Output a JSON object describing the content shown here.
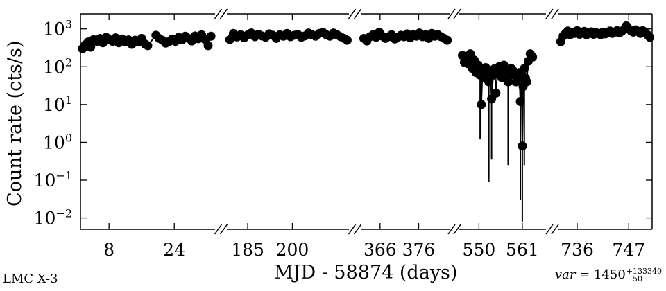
{
  "chart_data": {
    "type": "scatter",
    "ylabel": "Count rate (cts/s)",
    "xlabel": "MJD - 58874 (days)",
    "yscale": "log",
    "ylim": [
      0.005,
      2500
    ],
    "ytick_values": [
      0.01,
      0.1,
      1,
      10,
      100,
      1000
    ],
    "ytick_labels": [
      {
        "base": "10",
        "exp": "−2"
      },
      {
        "base": "10",
        "exp": "−1"
      },
      {
        "base": "10",
        "exp": "0"
      },
      {
        "base": "10",
        "exp": "1"
      },
      {
        "base": "10",
        "exp": "2"
      },
      {
        "base": "10",
        "exp": "3"
      }
    ],
    "broken_axis": true,
    "grid": false,
    "segments": [
      {
        "xlim": [
          1,
          34
        ],
        "xticks": [
          8,
          24
        ],
        "points": [
          [
            1.5,
            300
          ],
          [
            2.2,
            380
          ],
          [
            2.9,
            450
          ],
          [
            3.5,
            330
          ],
          [
            4.2,
            520
          ],
          [
            5.0,
            470
          ],
          [
            5.8,
            560
          ],
          [
            6.5,
            430
          ],
          [
            7.3,
            600
          ],
          [
            8.1,
            520
          ],
          [
            8.9,
            470
          ],
          [
            9.6,
            580
          ],
          [
            10.4,
            430
          ],
          [
            11.2,
            540
          ],
          [
            12.0,
            460
          ],
          [
            12.8,
            510
          ],
          [
            13.6,
            390
          ],
          [
            14.4,
            500
          ],
          [
            15.2,
            450
          ],
          [
            16.0,
            560
          ],
          [
            16.8,
            400
          ],
          [
            17.5,
            360
          ],
          [
            19.5,
            680
          ],
          [
            20.3,
            560
          ],
          [
            21.1,
            500
          ],
          [
            21.9,
            420
          ],
          [
            22.7,
            460
          ],
          [
            23.5,
            540
          ],
          [
            24.3,
            470
          ],
          [
            25.1,
            600
          ],
          [
            25.9,
            510
          ],
          [
            26.7,
            640
          ],
          [
            27.5,
            560
          ],
          [
            28.3,
            480
          ],
          [
            29.1,
            650
          ],
          [
            29.9,
            550
          ],
          [
            30.7,
            700
          ],
          [
            31.5,
            530
          ],
          [
            32.3,
            360
          ],
          [
            33.0,
            640
          ]
        ]
      },
      {
        "xlim": [
          178,
          219
        ],
        "xticks": [
          185,
          200
        ],
        "points": [
          [
            179.0,
            520
          ],
          [
            180.2,
            760
          ],
          [
            181.4,
            610
          ],
          [
            182.6,
            700
          ],
          [
            183.8,
            580
          ],
          [
            185.0,
            690
          ],
          [
            186.2,
            780
          ],
          [
            187.4,
            620
          ],
          [
            188.6,
            720
          ],
          [
            189.8,
            650
          ],
          [
            191.0,
            600
          ],
          [
            192.2,
            740
          ],
          [
            193.4,
            680
          ],
          [
            194.6,
            560
          ],
          [
            195.8,
            700
          ],
          [
            197.0,
            640
          ],
          [
            198.2,
            760
          ],
          [
            199.4,
            620
          ],
          [
            200.6,
            680
          ],
          [
            201.8,
            720
          ],
          [
            203.0,
            600
          ],
          [
            204.2,
            650
          ],
          [
            205.4,
            780
          ],
          [
            206.6,
            700
          ],
          [
            207.8,
            640
          ],
          [
            209.0,
            760
          ],
          [
            210.2,
            820
          ],
          [
            211.4,
            700
          ],
          [
            212.6,
            640
          ],
          [
            213.8,
            780
          ],
          [
            215.0,
            700
          ],
          [
            216.2,
            620
          ],
          [
            217.4,
            560
          ],
          [
            218.4,
            500
          ]
        ]
      },
      {
        "xlim": [
          361,
          384
        ],
        "xticks": [
          366,
          376
        ],
        "points": [
          [
            361.8,
            560
          ],
          [
            362.6,
            480
          ],
          [
            363.4,
            620
          ],
          [
            364.2,
            700
          ],
          [
            365.0,
            600
          ],
          [
            365.8,
            820
          ],
          [
            366.6,
            640
          ],
          [
            367.4,
            560
          ],
          [
            368.2,
            620
          ],
          [
            369.0,
            700
          ],
          [
            369.8,
            540
          ],
          [
            370.6,
            600
          ],
          [
            371.4,
            680
          ],
          [
            372.2,
            620
          ],
          [
            373.0,
            740
          ],
          [
            373.8,
            580
          ],
          [
            374.6,
            700
          ],
          [
            375.4,
            640
          ],
          [
            376.2,
            780
          ],
          [
            377.0,
            620
          ],
          [
            377.8,
            700
          ],
          [
            378.6,
            560
          ],
          [
            379.4,
            760
          ],
          [
            380.2,
            640
          ],
          [
            381.0,
            700
          ],
          [
            381.8,
            620
          ],
          [
            382.6,
            560
          ],
          [
            383.4,
            500
          ]
        ]
      },
      {
        "xlim": [
          545,
          567
        ],
        "xticks": [
          550,
          561
        ],
        "points": [
          [
            545.8,
            200
          ],
          [
            546.3,
            130
          ],
          [
            546.8,
            160
          ],
          [
            547.3,
            120
          ],
          [
            547.8,
            220
          ],
          [
            548.3,
            90
          ],
          [
            548.8,
            150
          ],
          [
            549.3,
            70
          ],
          [
            549.8,
            110
          ],
          [
            550.3,
            60
          ],
          [
            550.6,
            10
          ],
          [
            550.9,
            80
          ],
          [
            551.3,
            50
          ],
          [
            551.7,
            95
          ],
          [
            552.1,
            70
          ],
          [
            552.5,
            40
          ],
          [
            552.9,
            80
          ],
          [
            553.2,
            14
          ],
          [
            553.6,
            60
          ],
          [
            554.0,
            90
          ],
          [
            554.3,
            20
          ],
          [
            554.7,
            70
          ],
          [
            555.1,
            100
          ],
          [
            555.5,
            80
          ],
          [
            555.9,
            50
          ],
          [
            556.3,
            110
          ],
          [
            556.7,
            90
          ],
          [
            557.1,
            70
          ],
          [
            557.4,
            40
          ],
          [
            557.8,
            60
          ],
          [
            558.2,
            90
          ],
          [
            558.6,
            80
          ],
          [
            559.0,
            60
          ],
          [
            559.4,
            40
          ],
          [
            559.8,
            50
          ],
          [
            560.2,
            70
          ],
          [
            560.5,
            12
          ],
          [
            560.8,
            55
          ],
          [
            561.0,
            0.8
          ],
          [
            561.2,
            30
          ],
          [
            561.5,
            90
          ],
          [
            561.8,
            50
          ],
          [
            562.1,
            40
          ],
          [
            562.5,
            140
          ],
          [
            563.0,
            220
          ],
          [
            563.6,
            180
          ]
        ]
      },
      {
        "xlim": [
          732,
          752
        ],
        "xticks": [
          736,
          747
        ],
        "points": [
          [
            732.5,
            460
          ],
          [
            733.0,
            650
          ],
          [
            733.5,
            760
          ],
          [
            734.0,
            880
          ],
          [
            734.5,
            700
          ],
          [
            735.0,
            820
          ],
          [
            735.5,
            760
          ],
          [
            736.0,
            900
          ],
          [
            736.5,
            720
          ],
          [
            737.0,
            800
          ],
          [
            737.5,
            860
          ],
          [
            738.0,
            700
          ],
          [
            738.5,
            760
          ],
          [
            739.0,
            840
          ],
          [
            739.5,
            720
          ],
          [
            740.0,
            800
          ],
          [
            740.5,
            760
          ],
          [
            741.0,
            700
          ],
          [
            741.5,
            820
          ],
          [
            742.0,
            740
          ],
          [
            742.5,
            800
          ],
          [
            743.0,
            880
          ],
          [
            743.5,
            760
          ],
          [
            744.0,
            820
          ],
          [
            744.5,
            900
          ],
          [
            745.0,
            780
          ],
          [
            745.5,
            860
          ],
          [
            746.0,
            960
          ],
          [
            746.5,
            1200
          ],
          [
            747.0,
            1000
          ],
          [
            747.5,
            880
          ],
          [
            748.0,
            820
          ],
          [
            748.5,
            940
          ],
          [
            749.0,
            860
          ],
          [
            749.5,
            760
          ],
          [
            750.0,
            900
          ],
          [
            750.5,
            800
          ],
          [
            751.0,
            700
          ],
          [
            751.5,
            600
          ]
        ]
      }
    ],
    "deep_errorbars": [
      {
        "x": 550.3,
        "y": 60,
        "low": 1.2
      },
      {
        "x": 552.5,
        "y": 40,
        "low": 0.09
      },
      {
        "x": 553.2,
        "y": 14,
        "low": 0.35
      },
      {
        "x": 557.4,
        "y": 40,
        "low": 0.25
      },
      {
        "x": 560.5,
        "y": 12,
        "low": 0.03
      },
      {
        "x": 561.0,
        "y": 0.8,
        "low": 0.008
      },
      {
        "x": 561.5,
        "y": 90,
        "low": 0.25
      }
    ]
  },
  "source_label": "LMC X-3",
  "variability": {
    "label": "var",
    "equals": " = ",
    "value": "1450",
    "upper": "+133340",
    "lower": "−50"
  },
  "colors": {
    "marker": "#000000",
    "axis": "#000000",
    "background": "#ffffff"
  }
}
